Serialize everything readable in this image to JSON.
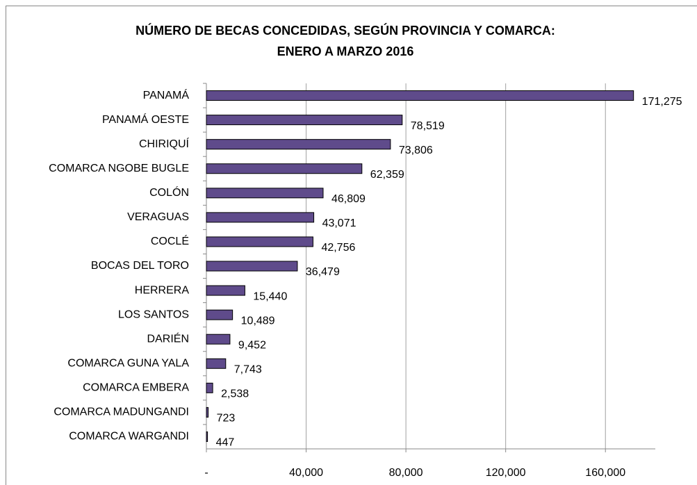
{
  "chart_data": {
    "type": "bar",
    "orientation": "horizontal",
    "title": [
      "NÚMERO DE BECAS CONCEDIDAS, SEGÚN PROVINCIA Y COMARCA:",
      "ENERO A MARZO 2016"
    ],
    "categories": [
      "PANAMÁ",
      "PANAMÁ OESTE",
      "CHIRIQUÍ",
      "COMARCA NGOBE  BUGLE",
      "COLÓN",
      "VERAGUAS",
      "COCLÉ",
      "BOCAS DEL TORO",
      "HERRERA",
      "LOS SANTOS",
      "DARIÉN",
      "COMARCA GUNA YALA",
      "COMARCA EMBERA",
      "COMARCA MADUNGANDI",
      "COMARCA WARGANDI"
    ],
    "values": [
      171275,
      78519,
      73806,
      62359,
      46809,
      43071,
      42756,
      36479,
      15440,
      10489,
      9452,
      7743,
      2538,
      723,
      447
    ],
    "value_labels": [
      "171,275",
      "78,519",
      "73,806",
      "62,359",
      "46,809",
      "43,071",
      "42,756",
      "36,479",
      "15,440",
      "10,489",
      "9,452",
      "7,743",
      "2,538",
      "723",
      "447"
    ],
    "color": "#5f4b8b",
    "xlim": [
      0,
      180000
    ],
    "xticks": [
      {
        "value": 0,
        "label": "-"
      },
      {
        "value": 40000,
        "label": "40,000"
      },
      {
        "value": 80000,
        "label": "80,000"
      },
      {
        "value": 120000,
        "label": "120,000"
      },
      {
        "value": 160000,
        "label": "160,000"
      }
    ],
    "grid": true
  }
}
